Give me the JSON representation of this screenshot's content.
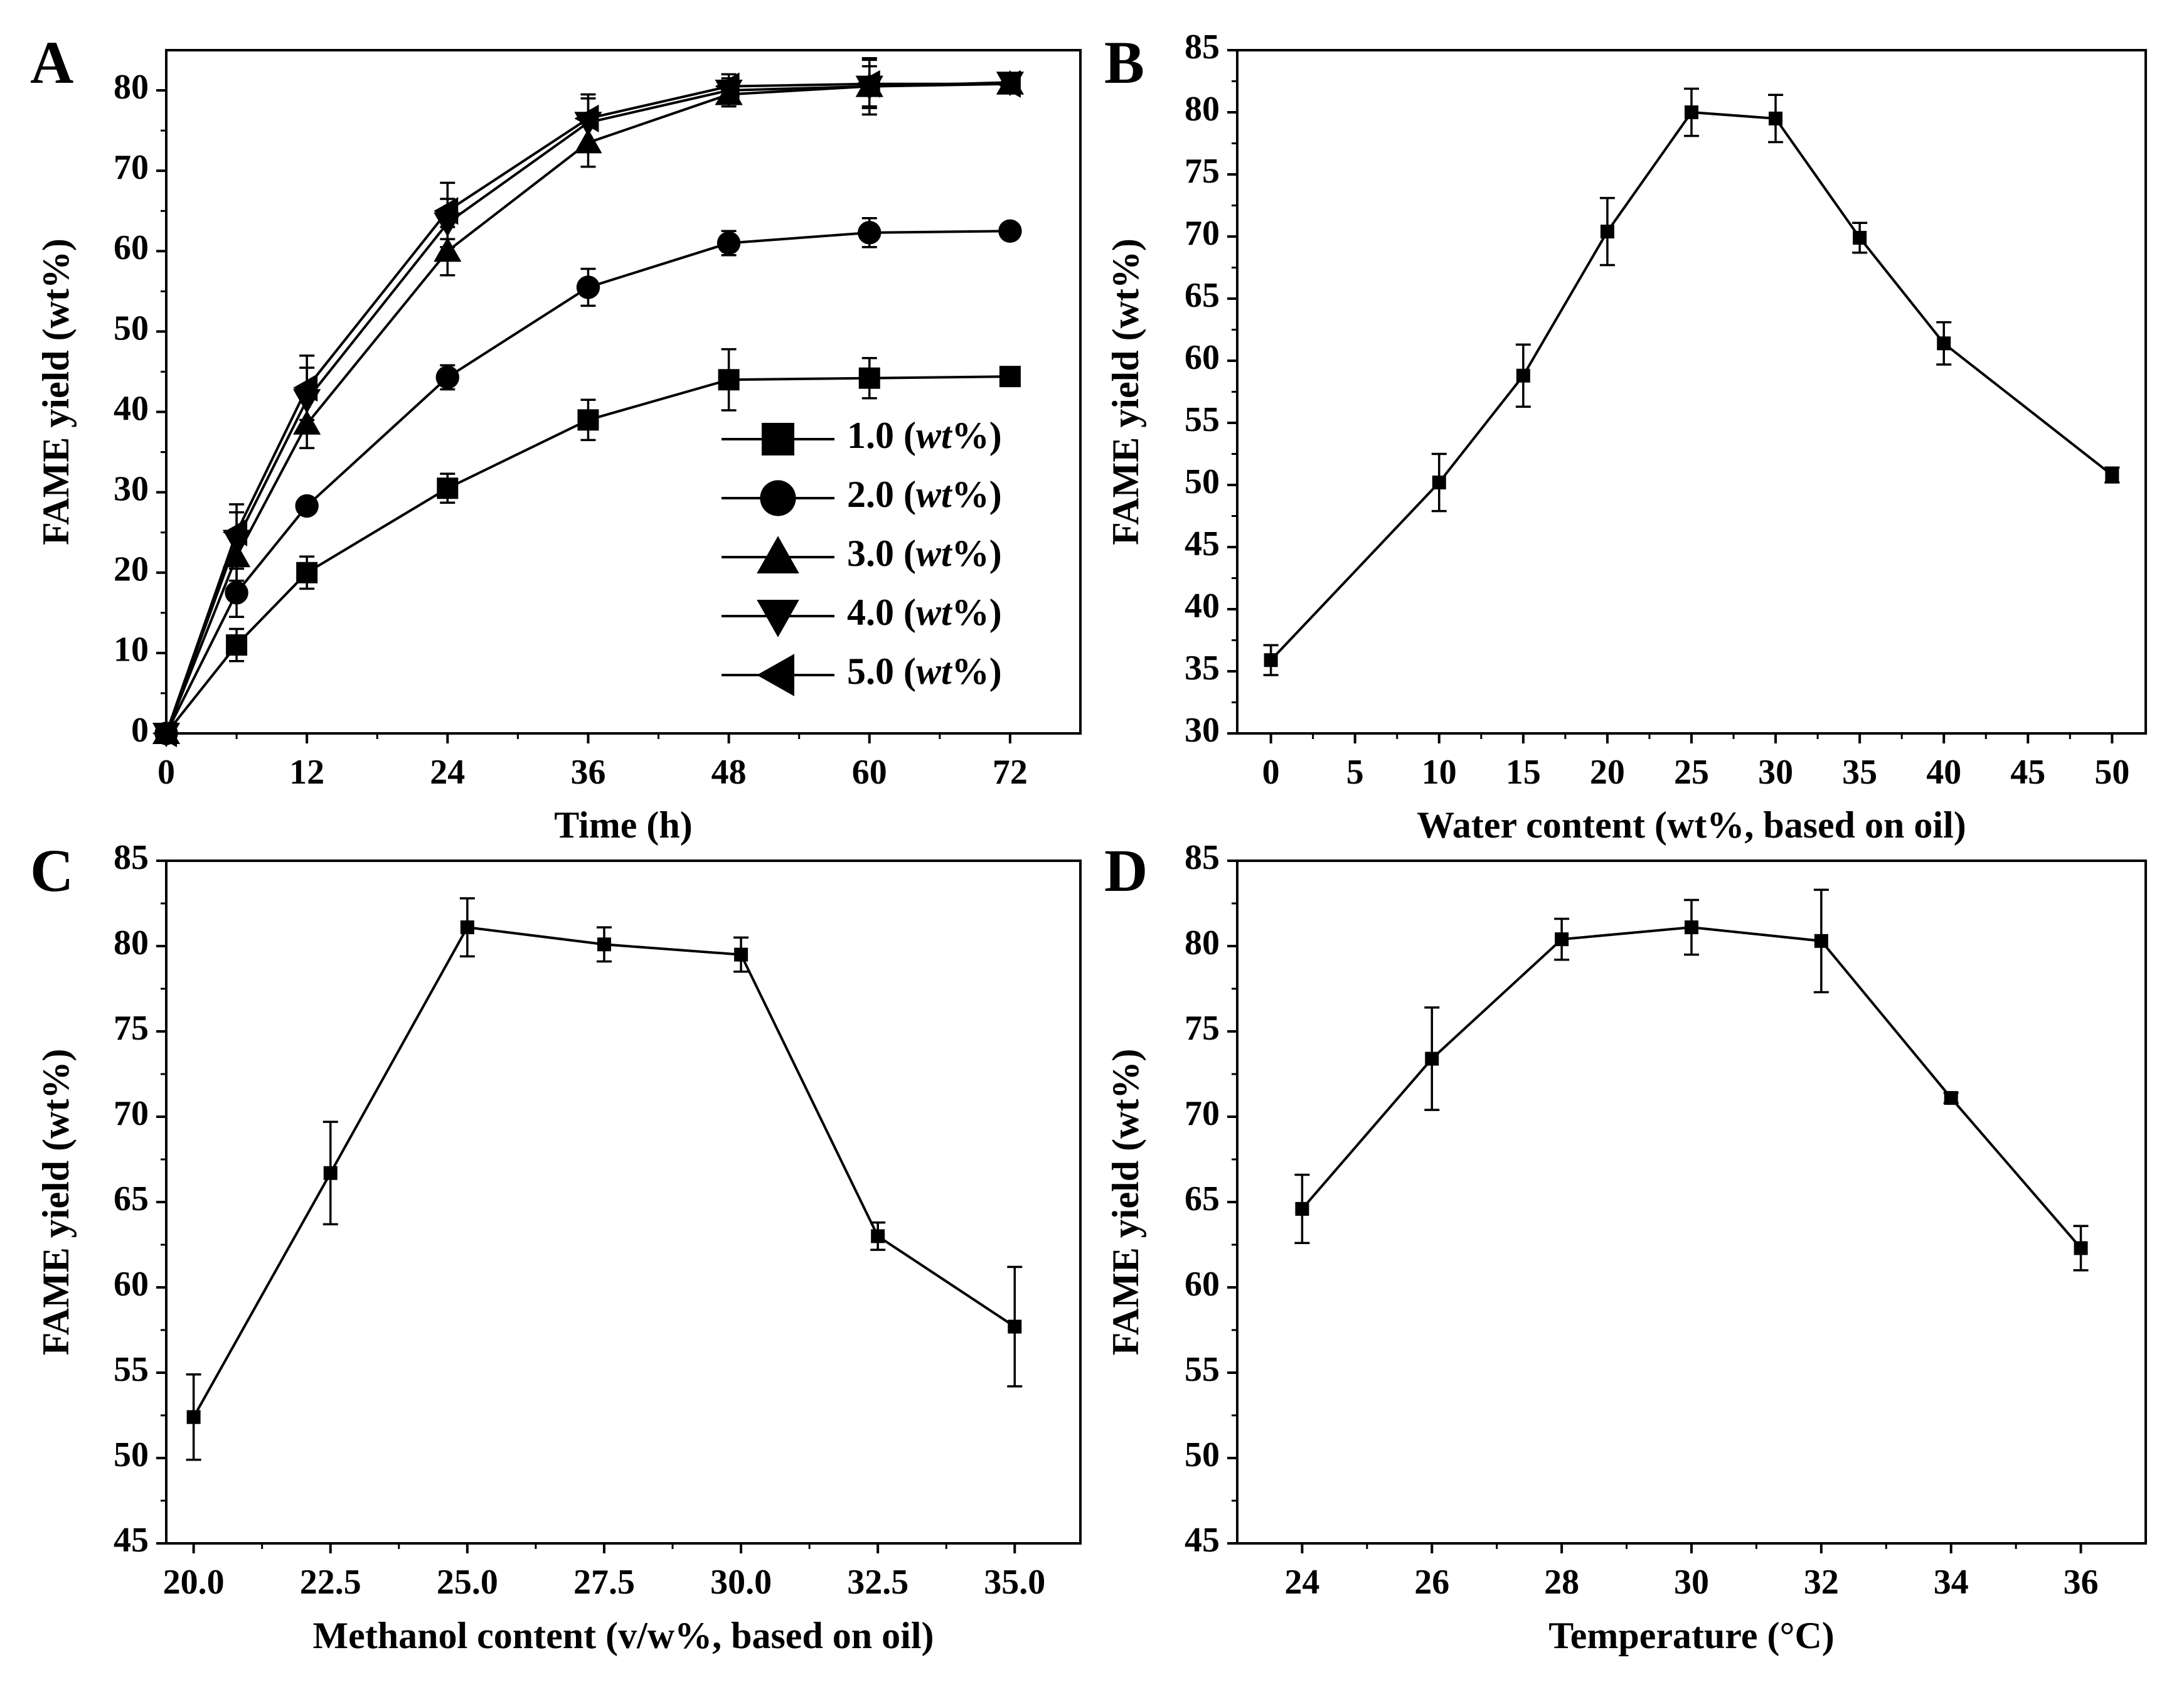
{
  "chart_data": [
    {
      "panel_label": "A",
      "type": "line",
      "xlabel": "Time (h)",
      "ylabel": "FAME yield (wt%)",
      "xlim": [
        0,
        78
      ],
      "ylim": [
        0,
        85
      ],
      "xticks": [
        0,
        12,
        24,
        36,
        48,
        60,
        72
      ],
      "xtick_labels": [
        "0",
        "12",
        "24",
        "36",
        "48",
        "60",
        "72"
      ],
      "yticks": [
        0,
        10,
        20,
        30,
        40,
        50,
        60,
        70,
        80
      ],
      "ytick_labels": [
        "0",
        "10",
        "20",
        "30",
        "40",
        "50",
        "60",
        "70",
        "80"
      ],
      "legend_position": "bottom-right",
      "x": [
        0,
        6,
        12,
        24,
        36,
        48,
        60,
        72
      ],
      "series": [
        {
          "name": "1.0 (wt%)",
          "value_label": "1.0",
          "unit_label": "(wt%)",
          "marker": "square",
          "values": [
            0,
            11,
            20,
            30.5,
            39,
            44,
            44.2,
            44.4
          ],
          "errors": [
            0,
            2,
            2,
            1.8,
            2.5,
            3.8,
            2.5,
            0.5
          ]
        },
        {
          "name": "2.0 (wt%)",
          "value_label": "2.0",
          "unit_label": "(wt%)",
          "marker": "circle",
          "values": [
            0,
            17.5,
            28.3,
            44.3,
            55.5,
            61,
            62.3,
            62.5
          ],
          "errors": [
            0,
            3,
            0.8,
            1.5,
            2.3,
            1.5,
            1.8,
            0.5
          ]
        },
        {
          "name": "3.0 (wt%)",
          "value_label": "3.0",
          "unit_label": "(wt%)",
          "marker": "triangle-up",
          "values": [
            0,
            22,
            38.5,
            60,
            73.5,
            79.5,
            80.5,
            80.8
          ],
          "errors": [
            0,
            3,
            3,
            3,
            3,
            1.5,
            3.5,
            1
          ]
        },
        {
          "name": "4.0 (wt%)",
          "value_label": "4.0",
          "unit_label": "(wt%)",
          "marker": "triangle-down",
          "values": [
            0,
            24,
            41.5,
            63.5,
            76,
            80,
            80.5,
            81
          ],
          "errors": [
            0,
            3.5,
            4,
            3,
            3,
            1.5,
            2.5,
            1
          ]
        },
        {
          "name": "5.0 (wt%)",
          "value_label": "5.0",
          "unit_label": "(wt%)",
          "marker": "triangle-left",
          "values": [
            0,
            25,
            43,
            65,
            76.5,
            80.5,
            80.8,
            80.8
          ],
          "errors": [
            0,
            3.5,
            4,
            3.5,
            3,
            1.5,
            3,
            1
          ]
        }
      ]
    },
    {
      "panel_label": "B",
      "type": "line",
      "xlabel": "Water  content (wt%, based on oil)",
      "ylabel": "FAME yield (wt%)",
      "xlim": [
        -2,
        52
      ],
      "ylim": [
        30,
        85
      ],
      "xticks": [
        0,
        5,
        10,
        15,
        20,
        25,
        30,
        35,
        40,
        45,
        50
      ],
      "xtick_labels": [
        "0",
        "5",
        "10",
        "15",
        "20",
        "25",
        "30",
        "35",
        "40",
        "45",
        "50"
      ],
      "yticks": [
        30,
        35,
        40,
        45,
        50,
        55,
        60,
        65,
        70,
        75,
        80,
        85
      ],
      "ytick_labels": [
        "30",
        "35",
        "40",
        "45",
        "50",
        "55",
        "60",
        "65",
        "70",
        "75",
        "80",
        "85"
      ],
      "x": [
        0,
        10,
        15,
        20,
        25,
        30,
        35,
        40,
        50
      ],
      "series": [
        {
          "name": "FAME yield",
          "marker": "square",
          "values": [
            35.9,
            50.2,
            58.8,
            70.4,
            80,
            79.5,
            69.9,
            61.4,
            50.8
          ],
          "errors": [
            1.2,
            2.3,
            2.5,
            2.7,
            1.9,
            1.9,
            1.2,
            1.7,
            0.6
          ]
        }
      ]
    },
    {
      "panel_label": "C",
      "type": "line",
      "xlabel": "Methanol content (v/w%, based on oil)",
      "ylabel": "FAME yield (wt%)",
      "xlim": [
        19.5,
        36.2
      ],
      "ylim": [
        45,
        85
      ],
      "xticks": [
        20,
        22.5,
        25,
        27.5,
        30,
        32.5,
        35
      ],
      "xtick_labels": [
        "20.0",
        "22.5",
        "25.0",
        "27.5",
        "30.0",
        "32.5",
        "35.0"
      ],
      "yticks": [
        45,
        50,
        55,
        60,
        65,
        70,
        75,
        80,
        85
      ],
      "ytick_labels": [
        "45",
        "50",
        "55",
        "60",
        "65",
        "70",
        "75",
        "80",
        "85"
      ],
      "x": [
        20,
        22.5,
        25,
        27.5,
        30,
        32.5,
        35
      ],
      "series": [
        {
          "name": "FAME yield",
          "marker": "square",
          "values": [
            52.4,
            66.7,
            81.1,
            80.1,
            79.5,
            63,
            57.7
          ],
          "errors": [
            2.5,
            3,
            1.7,
            1,
            1,
            0.8,
            3.5
          ]
        }
      ]
    },
    {
      "panel_label": "D",
      "type": "line",
      "xlabel": "Temperature (°C)",
      "ylabel": "FAME yield (wt%)",
      "xlim": [
        23,
        37
      ],
      "ylim": [
        45,
        85
      ],
      "xticks": [
        24,
        26,
        28,
        30,
        32,
        34,
        36
      ],
      "xtick_labels": [
        "24",
        "26",
        "28",
        "30",
        "32",
        "34",
        "36"
      ],
      "yticks": [
        45,
        50,
        55,
        60,
        65,
        70,
        75,
        80,
        85
      ],
      "ytick_labels": [
        "45",
        "50",
        "55",
        "60",
        "65",
        "70",
        "75",
        "80",
        "85"
      ],
      "x": [
        24,
        26,
        28,
        30,
        32,
        34,
        36
      ],
      "series": [
        {
          "name": "FAME yield",
          "marker": "square",
          "values": [
            64.6,
            73.4,
            80.4,
            81.1,
            80.3,
            71.1,
            62.3
          ],
          "errors": [
            2,
            3,
            1.2,
            1.6,
            3,
            0.3,
            1.3
          ]
        }
      ]
    }
  ]
}
